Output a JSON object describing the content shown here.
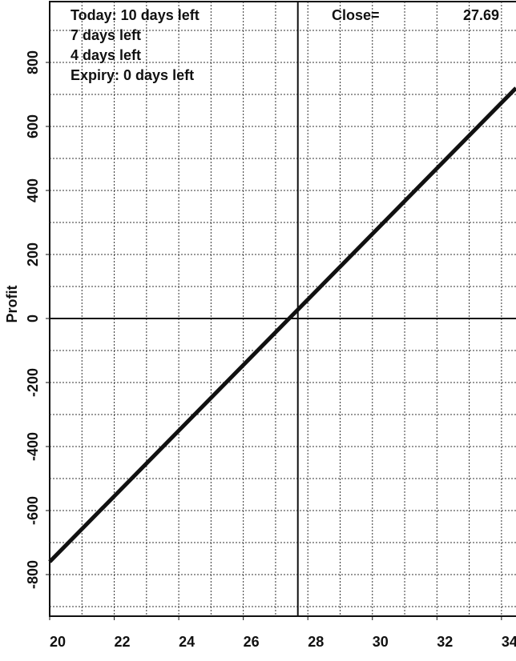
{
  "chart_data": {
    "type": "line",
    "ylabel": "Profit",
    "legend_entries": [
      "Today: 10 days left",
      "7 days left",
      "4 days left",
      "Expiry:  0 days left"
    ],
    "close": {
      "label": "Close=",
      "value": 27.69
    },
    "x": [
      20,
      34.45
    ],
    "series": [
      {
        "color": "#111111",
        "values": [
          -760,
          720
        ]
      }
    ],
    "xlim": [
      20,
      34.45
    ],
    "ylim": [
      -930,
      990
    ],
    "xticks": [
      20,
      22,
      24,
      26,
      28,
      30,
      32,
      34
    ],
    "yticks": [
      -800,
      -600,
      -400,
      -200,
      0,
      200,
      400,
      600,
      800
    ],
    "xgrid": [
      21,
      22,
      23,
      24,
      25,
      26,
      27,
      28,
      29,
      30,
      31,
      32,
      33,
      34
    ],
    "ygrid": [
      -900,
      -800,
      -700,
      -600,
      -500,
      -400,
      -300,
      -200,
      -100,
      100,
      200,
      300,
      400,
      500,
      600,
      700,
      800,
      900
    ],
    "zero_line": 0
  }
}
